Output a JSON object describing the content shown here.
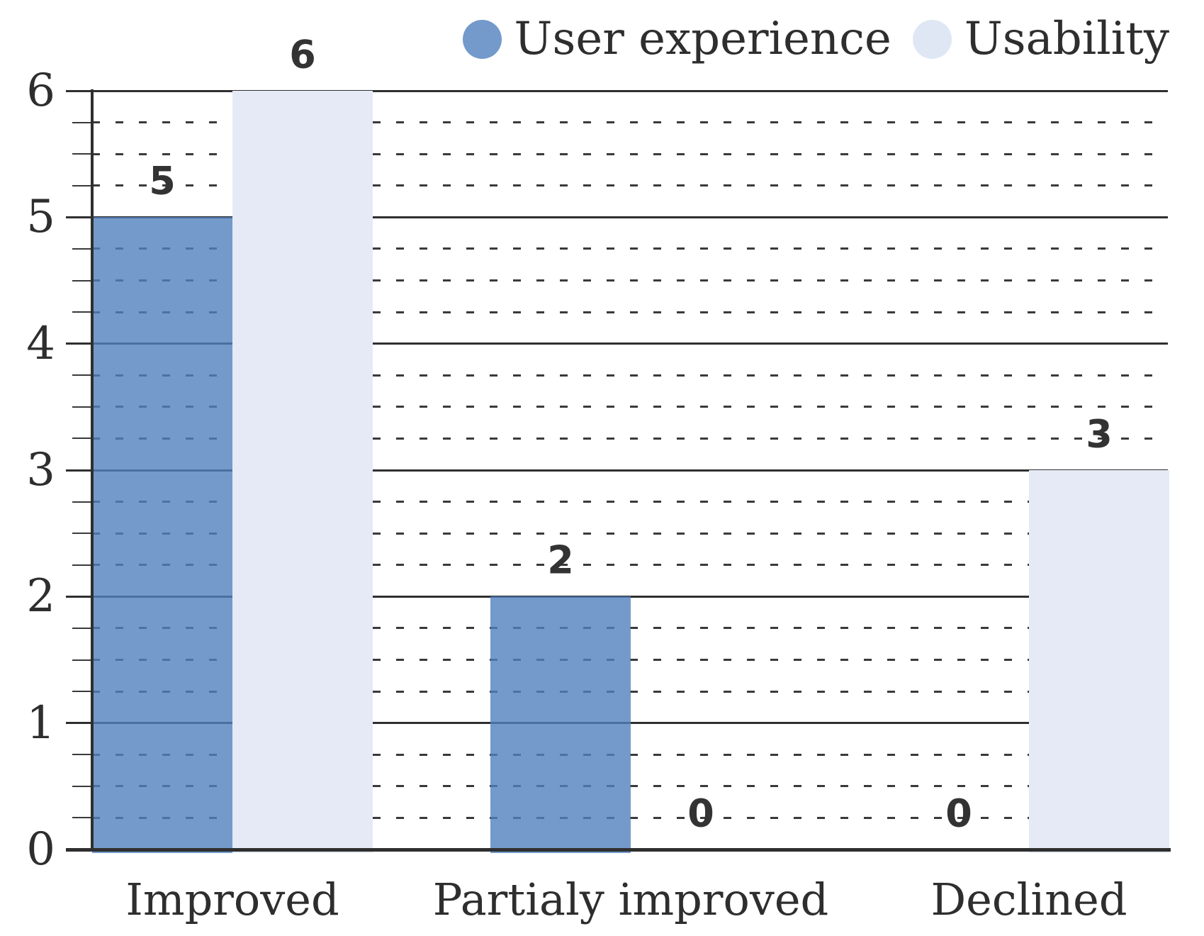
{
  "chart_data": {
    "type": "bar",
    "title": "",
    "categories": [
      "Improved",
      "Partialy improved",
      "Declined"
    ],
    "series": [
      {
        "name": "User experience",
        "values": [
          5,
          2,
          0
        ],
        "color": "#5181BE",
        "opacity": 0.8,
        "legend_color": "#7499CB"
      },
      {
        "name": "Usability",
        "values": [
          6,
          0,
          3
        ],
        "color": "#E5EAF6",
        "opacity": 1,
        "legend_color": "#DFE7F4"
      }
    ],
    "xlabel": "",
    "ylabel": "",
    "ylim": [
      0,
      6
    ],
    "y_major_step": 1,
    "y_minor_step": 0.25,
    "y_ticks": [
      "0",
      "1",
      "2",
      "3",
      "4",
      "5",
      "6"
    ],
    "grid": "solid major gridlines, dashed minor gridlines",
    "legend_position": "top-right",
    "data_labels": true,
    "colors": {
      "grid_line": "#2f2f2f",
      "dash_line": "#3a3a3a",
      "text": "#2e2e2e",
      "data_label_text": "#333333",
      "background": "#ffffff"
    }
  }
}
